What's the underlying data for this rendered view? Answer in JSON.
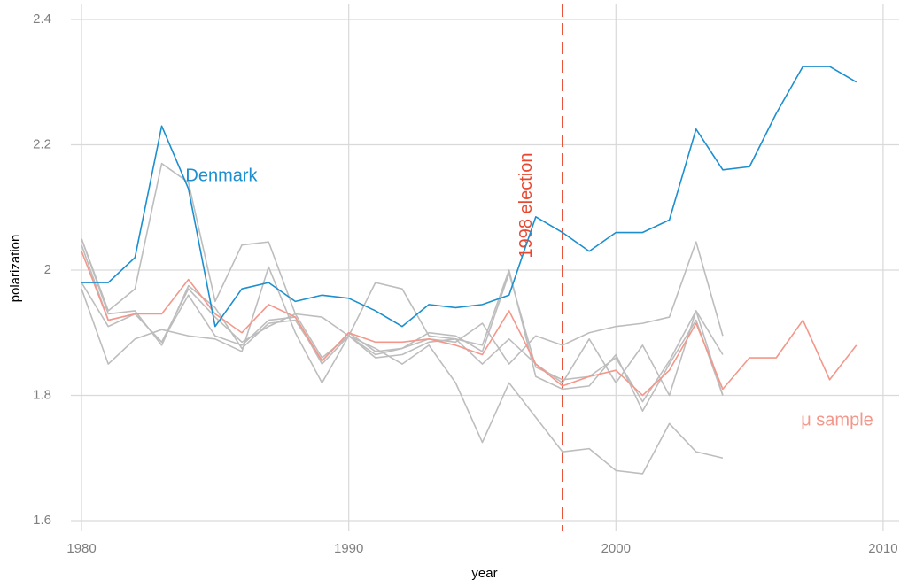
{
  "chart_data": {
    "type": "line",
    "x_label": "year",
    "y_label": "polarization",
    "x": [
      1980,
      1981,
      1982,
      1983,
      1984,
      1985,
      1986,
      1987,
      1988,
      1989,
      1990,
      1991,
      1992,
      1993,
      1994,
      1995,
      1996,
      1997,
      1998,
      1999,
      2000,
      2001,
      2002,
      2003,
      2004,
      2005,
      2006,
      2007,
      2008,
      2009
    ],
    "xlim": [
      1979.6,
      2010.6
    ],
    "xticks": [
      1980,
      1990,
      2000,
      2010
    ],
    "ylim": [
      1.583,
      2.424
    ],
    "yticks": [
      1.6,
      1.8,
      2,
      2.2,
      2.4
    ],
    "grid": true,
    "series": [
      {
        "color": "#bdbdbd",
        "values": [
          1.97,
          1.85,
          1.89,
          1.905,
          1.895,
          1.89,
          1.87,
          2.005,
          1.9,
          1.82,
          1.895,
          1.875,
          1.85,
          1.88,
          1.82,
          1.725,
          1.82,
          1.765,
          1.71,
          1.715,
          1.68,
          1.675,
          1.755,
          1.71,
          1.7,
          null,
          null,
          null,
          null,
          null
        ]
      },
      {
        "color": "#bdbdbd",
        "values": [
          2.05,
          1.935,
          1.97,
          2.17,
          2.14,
          1.95,
          2.04,
          2.045,
          1.93,
          1.925,
          1.895,
          1.98,
          1.97,
          1.895,
          1.89,
          1.85,
          1.89,
          1.85,
          1.82,
          1.89,
          1.82,
          1.88,
          1.8,
          1.935,
          1.8,
          null,
          null,
          null,
          null,
          null
        ]
      },
      {
        "color": "#bdbdbd",
        "values": [
          1.98,
          1.91,
          1.93,
          1.885,
          1.96,
          1.895,
          1.88,
          1.92,
          1.925,
          1.85,
          1.895,
          1.86,
          1.865,
          1.885,
          1.89,
          1.88,
          2.0,
          1.83,
          1.81,
          1.815,
          1.865,
          1.775,
          1.85,
          1.92,
          1.8,
          null,
          null,
          null,
          null,
          null
        ]
      },
      {
        "color": "#bdbdbd",
        "values": [
          2.05,
          1.93,
          1.935,
          1.88,
          1.975,
          1.94,
          1.875,
          1.915,
          1.92,
          1.855,
          1.9,
          1.87,
          1.875,
          1.9,
          1.895,
          1.87,
          1.995,
          1.845,
          1.825,
          1.83,
          1.86,
          1.79,
          1.855,
          1.935,
          1.865,
          null,
          null,
          null,
          null,
          null
        ]
      },
      {
        "color": "#bdbdbd",
        "values": [
          2.04,
          1.92,
          1.93,
          1.885,
          1.97,
          1.925,
          1.885,
          1.91,
          1.93,
          1.86,
          1.895,
          1.865,
          1.875,
          1.89,
          1.885,
          1.915,
          1.85,
          1.895,
          1.88,
          1.9,
          1.91,
          1.915,
          1.925,
          2.045,
          1.895,
          null,
          null,
          null,
          null,
          null
        ]
      },
      {
        "name": "μ sample",
        "color": "#f4978a",
        "values": [
          2.03,
          1.92,
          1.93,
          1.93,
          1.985,
          1.93,
          1.9,
          1.945,
          1.925,
          1.855,
          1.9,
          1.885,
          1.885,
          1.89,
          1.88,
          1.865,
          1.935,
          1.85,
          1.815,
          1.83,
          1.84,
          1.8,
          1.84,
          1.915,
          1.81,
          1.86,
          1.86,
          1.92,
          1.825,
          1.88
        ]
      },
      {
        "name": "Denmark",
        "color": "#1b8fcf",
        "values": [
          1.98,
          1.98,
          2.02,
          2.23,
          2.13,
          1.91,
          1.97,
          1.98,
          1.95,
          1.96,
          1.955,
          1.935,
          1.91,
          1.945,
          1.94,
          1.945,
          1.96,
          2.085,
          2.06,
          2.03,
          2.06,
          2.06,
          2.08,
          2.225,
          2.16,
          2.165,
          2.25,
          2.325,
          2.325,
          2.3
        ]
      }
    ],
    "vlines": [
      {
        "x": 1998,
        "label": "1998 election",
        "color": "#e8482f"
      }
    ]
  }
}
